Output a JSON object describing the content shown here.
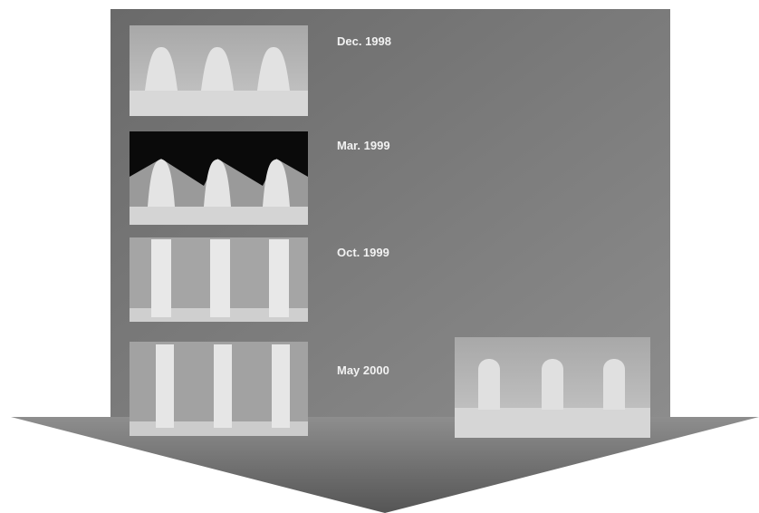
{
  "timeline": {
    "items": [
      {
        "label": "Dec. 1998"
      },
      {
        "label": "Mar. 1999"
      },
      {
        "label": "Oct. 1999"
      },
      {
        "label": "May 2000"
      }
    ]
  }
}
